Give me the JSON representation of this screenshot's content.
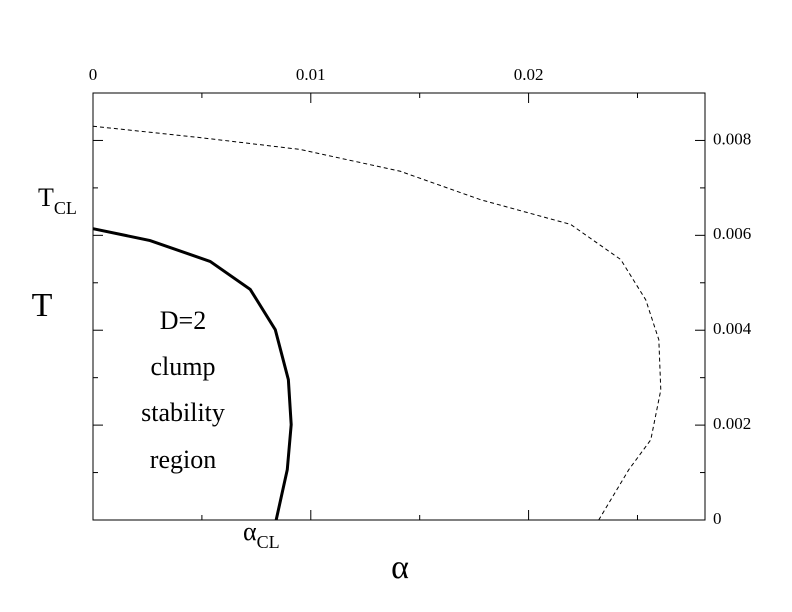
{
  "chart_data": {
    "type": "line",
    "x_label": "α",
    "y_label": "T",
    "xlim": [
      0,
      0.0281
    ],
    "ylim": [
      0,
      0.009
    ],
    "xticks": [
      0,
      0.01,
      0.02
    ],
    "yticks": [
      0,
      0.002,
      0.004,
      0.006,
      0.008
    ],
    "xminorticks": [
      0.005,
      0.015,
      0.025
    ],
    "yminorticks": [
      0.001,
      0.003,
      0.005,
      0.007
    ],
    "series": [
      {
        "style": "solid",
        "color": "#000000",
        "x": [
          0,
          0.00262,
          0.00538,
          0.00722,
          0.00837,
          0.00897,
          0.0091,
          0.00892,
          0.00841
        ],
        "values": [
          0.00614,
          0.00589,
          0.00545,
          0.00486,
          0.00401,
          0.00296,
          0.00201,
          0.00106,
          0
        ]
      },
      {
        "style": "dashed",
        "color": "#000000",
        "x": [
          0,
          0.00492,
          0.00952,
          0.01411,
          0.0178,
          0.02193,
          0.02423,
          0.02538,
          0.02598,
          0.02607,
          0.02561,
          0.0246,
          0.02322
        ],
        "values": [
          0.0083,
          0.00806,
          0.00781,
          0.00735,
          0.00675,
          0.00623,
          0.00549,
          0.00464,
          0.0038,
          0.00274,
          0.00169,
          0.00106,
          0
        ]
      }
    ],
    "annotations": [
      {
        "text": "T",
        "sub": "CL"
      },
      {
        "text": "α",
        "sub": "CL"
      }
    ],
    "region_label": [
      "D=2",
      "clump",
      "stability",
      "region"
    ]
  }
}
